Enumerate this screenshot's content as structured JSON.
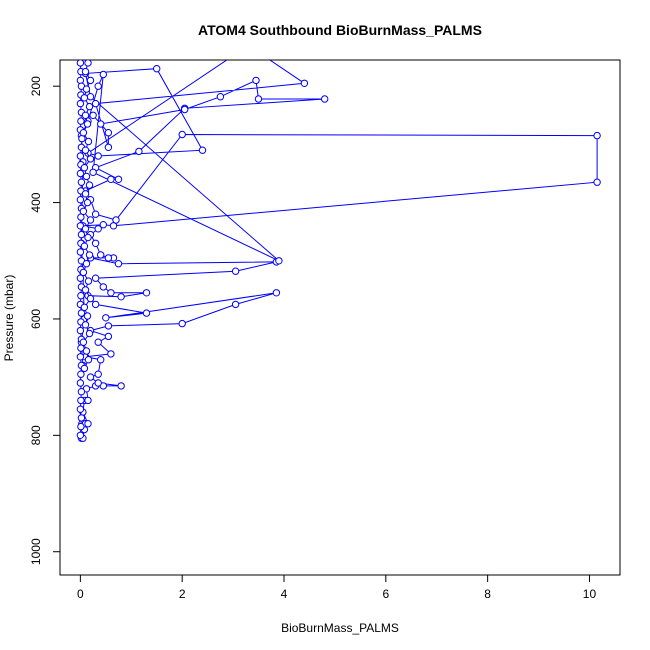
{
  "chart_data": {
    "type": "line",
    "title": "ATOM4 Southbound BioBurnMass_PALMS",
    "xlabel": "BioBurnMass_PALMS",
    "ylabel": "Pressure (mbar)",
    "xlim": [
      -0.4,
      10.6
    ],
    "ylim": [
      1040,
      155
    ],
    "y_reversed": true,
    "x_ticks": [
      0,
      2,
      4,
      6,
      8,
      10
    ],
    "y_ticks": [
      200,
      400,
      600,
      800,
      1000
    ],
    "grid": false,
    "series_color": "#0000ff",
    "marker": "open-circle",
    "series": [
      {
        "values": [
          [
            0.02,
            805
          ],
          [
            0.05,
            805
          ],
          [
            0.08,
            790
          ],
          [
            0.03,
            780
          ],
          [
            0.1,
            780
          ],
          [
            0.15,
            780
          ],
          [
            0.05,
            760
          ],
          [
            0.08,
            740
          ],
          [
            0.15,
            740
          ],
          [
            0.12,
            720
          ],
          [
            0.3,
            715
          ],
          [
            0.45,
            715
          ],
          [
            0.8,
            715
          ],
          [
            0.35,
            710
          ],
          [
            0.2,
            700
          ],
          [
            0.35,
            695
          ],
          [
            0.4,
            670
          ],
          [
            0.1,
            665
          ],
          [
            0.6,
            660
          ],
          [
            0.35,
            640
          ],
          [
            0.55,
            630
          ],
          [
            0.2,
            620
          ],
          [
            0.55,
            612
          ],
          [
            2.0,
            608
          ],
          [
            3.05,
            575
          ],
          [
            3.85,
            555
          ],
          [
            0.5,
            598
          ],
          [
            1.3,
            590
          ],
          [
            0.3,
            575
          ],
          [
            0.15,
            560
          ],
          [
            0.8,
            562
          ],
          [
            1.3,
            555
          ],
          [
            0.6,
            555
          ],
          [
            0.45,
            545
          ],
          [
            0.3,
            530
          ],
          [
            3.05,
            518
          ],
          [
            3.85,
            502
          ],
          [
            0.75,
            505
          ],
          [
            0.2,
            495
          ],
          [
            0.65,
            495
          ],
          [
            0.55,
            495
          ],
          [
            0.4,
            490
          ],
          [
            0.3,
            470
          ],
          [
            0.2,
            455
          ],
          [
            0.35,
            445
          ],
          [
            0.05,
            440
          ],
          [
            0.45,
            438
          ],
          [
            0.65,
            440
          ],
          [
            10.15,
            365
          ],
          [
            10.15,
            285
          ],
          [
            2.0,
            283
          ],
          [
            0.7,
            430
          ],
          [
            0.3,
            420
          ],
          [
            0.2,
            395
          ],
          [
            0.1,
            380
          ],
          [
            0.6,
            360
          ],
          [
            0.75,
            360
          ],
          [
            0.3,
            340
          ],
          [
            1.15,
            312
          ],
          [
            2.05,
            238
          ],
          [
            4.8,
            222
          ],
          [
            3.5,
            222
          ],
          [
            3.45,
            190
          ],
          [
            2.75,
            218
          ],
          [
            2.05,
            240
          ],
          [
            0.4,
            265
          ],
          [
            0.25,
            250
          ],
          [
            0.55,
            280
          ],
          [
            0.55,
            305
          ],
          [
            0.3,
            230
          ],
          [
            4.4,
            195
          ],
          [
            3.3,
            130
          ],
          [
            0.15,
            315
          ],
          [
            0.35,
            320
          ],
          [
            2.4,
            310
          ],
          [
            1.5,
            170
          ],
          [
            0.1,
            178
          ],
          [
            0.2,
            218
          ],
          [
            3.9,
            500
          ],
          [
            0.25,
            348
          ],
          [
            0.45,
            180
          ],
          [
            0.35,
            200
          ],
          [
            0.15,
            260
          ],
          [
            0.02,
            285
          ],
          [
            0.05,
            330
          ],
          [
            0.02,
            470
          ],
          [
            0.05,
            520
          ],
          [
            0.08,
            600
          ],
          [
            0.02,
            640
          ],
          [
            0.05,
            680
          ]
        ]
      },
      {
        "values": [
          [
            0.0,
            160
          ],
          [
            0.01,
            175
          ],
          [
            0.0,
            190
          ],
          [
            0.02,
            200
          ],
          [
            0.01,
            215
          ],
          [
            0.0,
            230
          ],
          [
            0.02,
            245
          ],
          [
            0.01,
            260
          ],
          [
            0.0,
            275
          ],
          [
            0.03,
            290
          ],
          [
            0.02,
            305
          ],
          [
            0.0,
            320
          ],
          [
            0.01,
            335
          ],
          [
            0.0,
            350
          ],
          [
            0.02,
            365
          ],
          [
            0.01,
            380
          ],
          [
            0.0,
            395
          ],
          [
            0.02,
            410
          ],
          [
            0.01,
            425
          ],
          [
            0.0,
            440
          ],
          [
            0.02,
            455
          ],
          [
            0.01,
            470
          ],
          [
            0.0,
            485
          ],
          [
            0.02,
            500
          ],
          [
            0.01,
            515
          ],
          [
            0.0,
            530
          ],
          [
            0.02,
            545
          ],
          [
            0.01,
            560
          ],
          [
            0.0,
            575
          ],
          [
            0.02,
            590
          ],
          [
            0.01,
            605
          ],
          [
            0.0,
            620
          ],
          [
            0.02,
            635
          ],
          [
            0.01,
            650
          ],
          [
            0.0,
            665
          ],
          [
            0.02,
            680
          ],
          [
            0.01,
            695
          ],
          [
            0.0,
            710
          ],
          [
            0.02,
            725
          ],
          [
            0.01,
            740
          ],
          [
            0.0,
            755
          ],
          [
            0.02,
            770
          ],
          [
            0.01,
            785
          ],
          [
            0.0,
            800
          ]
        ]
      },
      {
        "values": [
          [
            0.15,
            160
          ],
          [
            0.1,
            175
          ],
          [
            0.2,
            190
          ],
          [
            0.12,
            205
          ],
          [
            0.08,
            220
          ],
          [
            0.18,
            235
          ],
          [
            0.1,
            250
          ],
          [
            0.14,
            265
          ],
          [
            0.06,
            280
          ],
          [
            0.16,
            295
          ],
          [
            0.1,
            310
          ],
          [
            0.2,
            325
          ],
          [
            0.08,
            340
          ],
          [
            0.12,
            355
          ],
          [
            0.18,
            370
          ],
          [
            0.1,
            385
          ],
          [
            0.14,
            400
          ],
          [
            0.06,
            415
          ],
          [
            0.2,
            430
          ],
          [
            0.1,
            445
          ],
          [
            0.15,
            460
          ],
          [
            0.08,
            475
          ],
          [
            0.18,
            490
          ],
          [
            0.12,
            505
          ],
          [
            0.06,
            520
          ],
          [
            0.16,
            535
          ],
          [
            0.1,
            550
          ],
          [
            0.2,
            565
          ],
          [
            0.08,
            580
          ],
          [
            0.14,
            595
          ],
          [
            0.1,
            610
          ],
          [
            0.18,
            625
          ],
          [
            0.06,
            640
          ],
          [
            0.12,
            655
          ],
          [
            0.16,
            670
          ],
          [
            0.08,
            685
          ]
        ]
      }
    ]
  }
}
